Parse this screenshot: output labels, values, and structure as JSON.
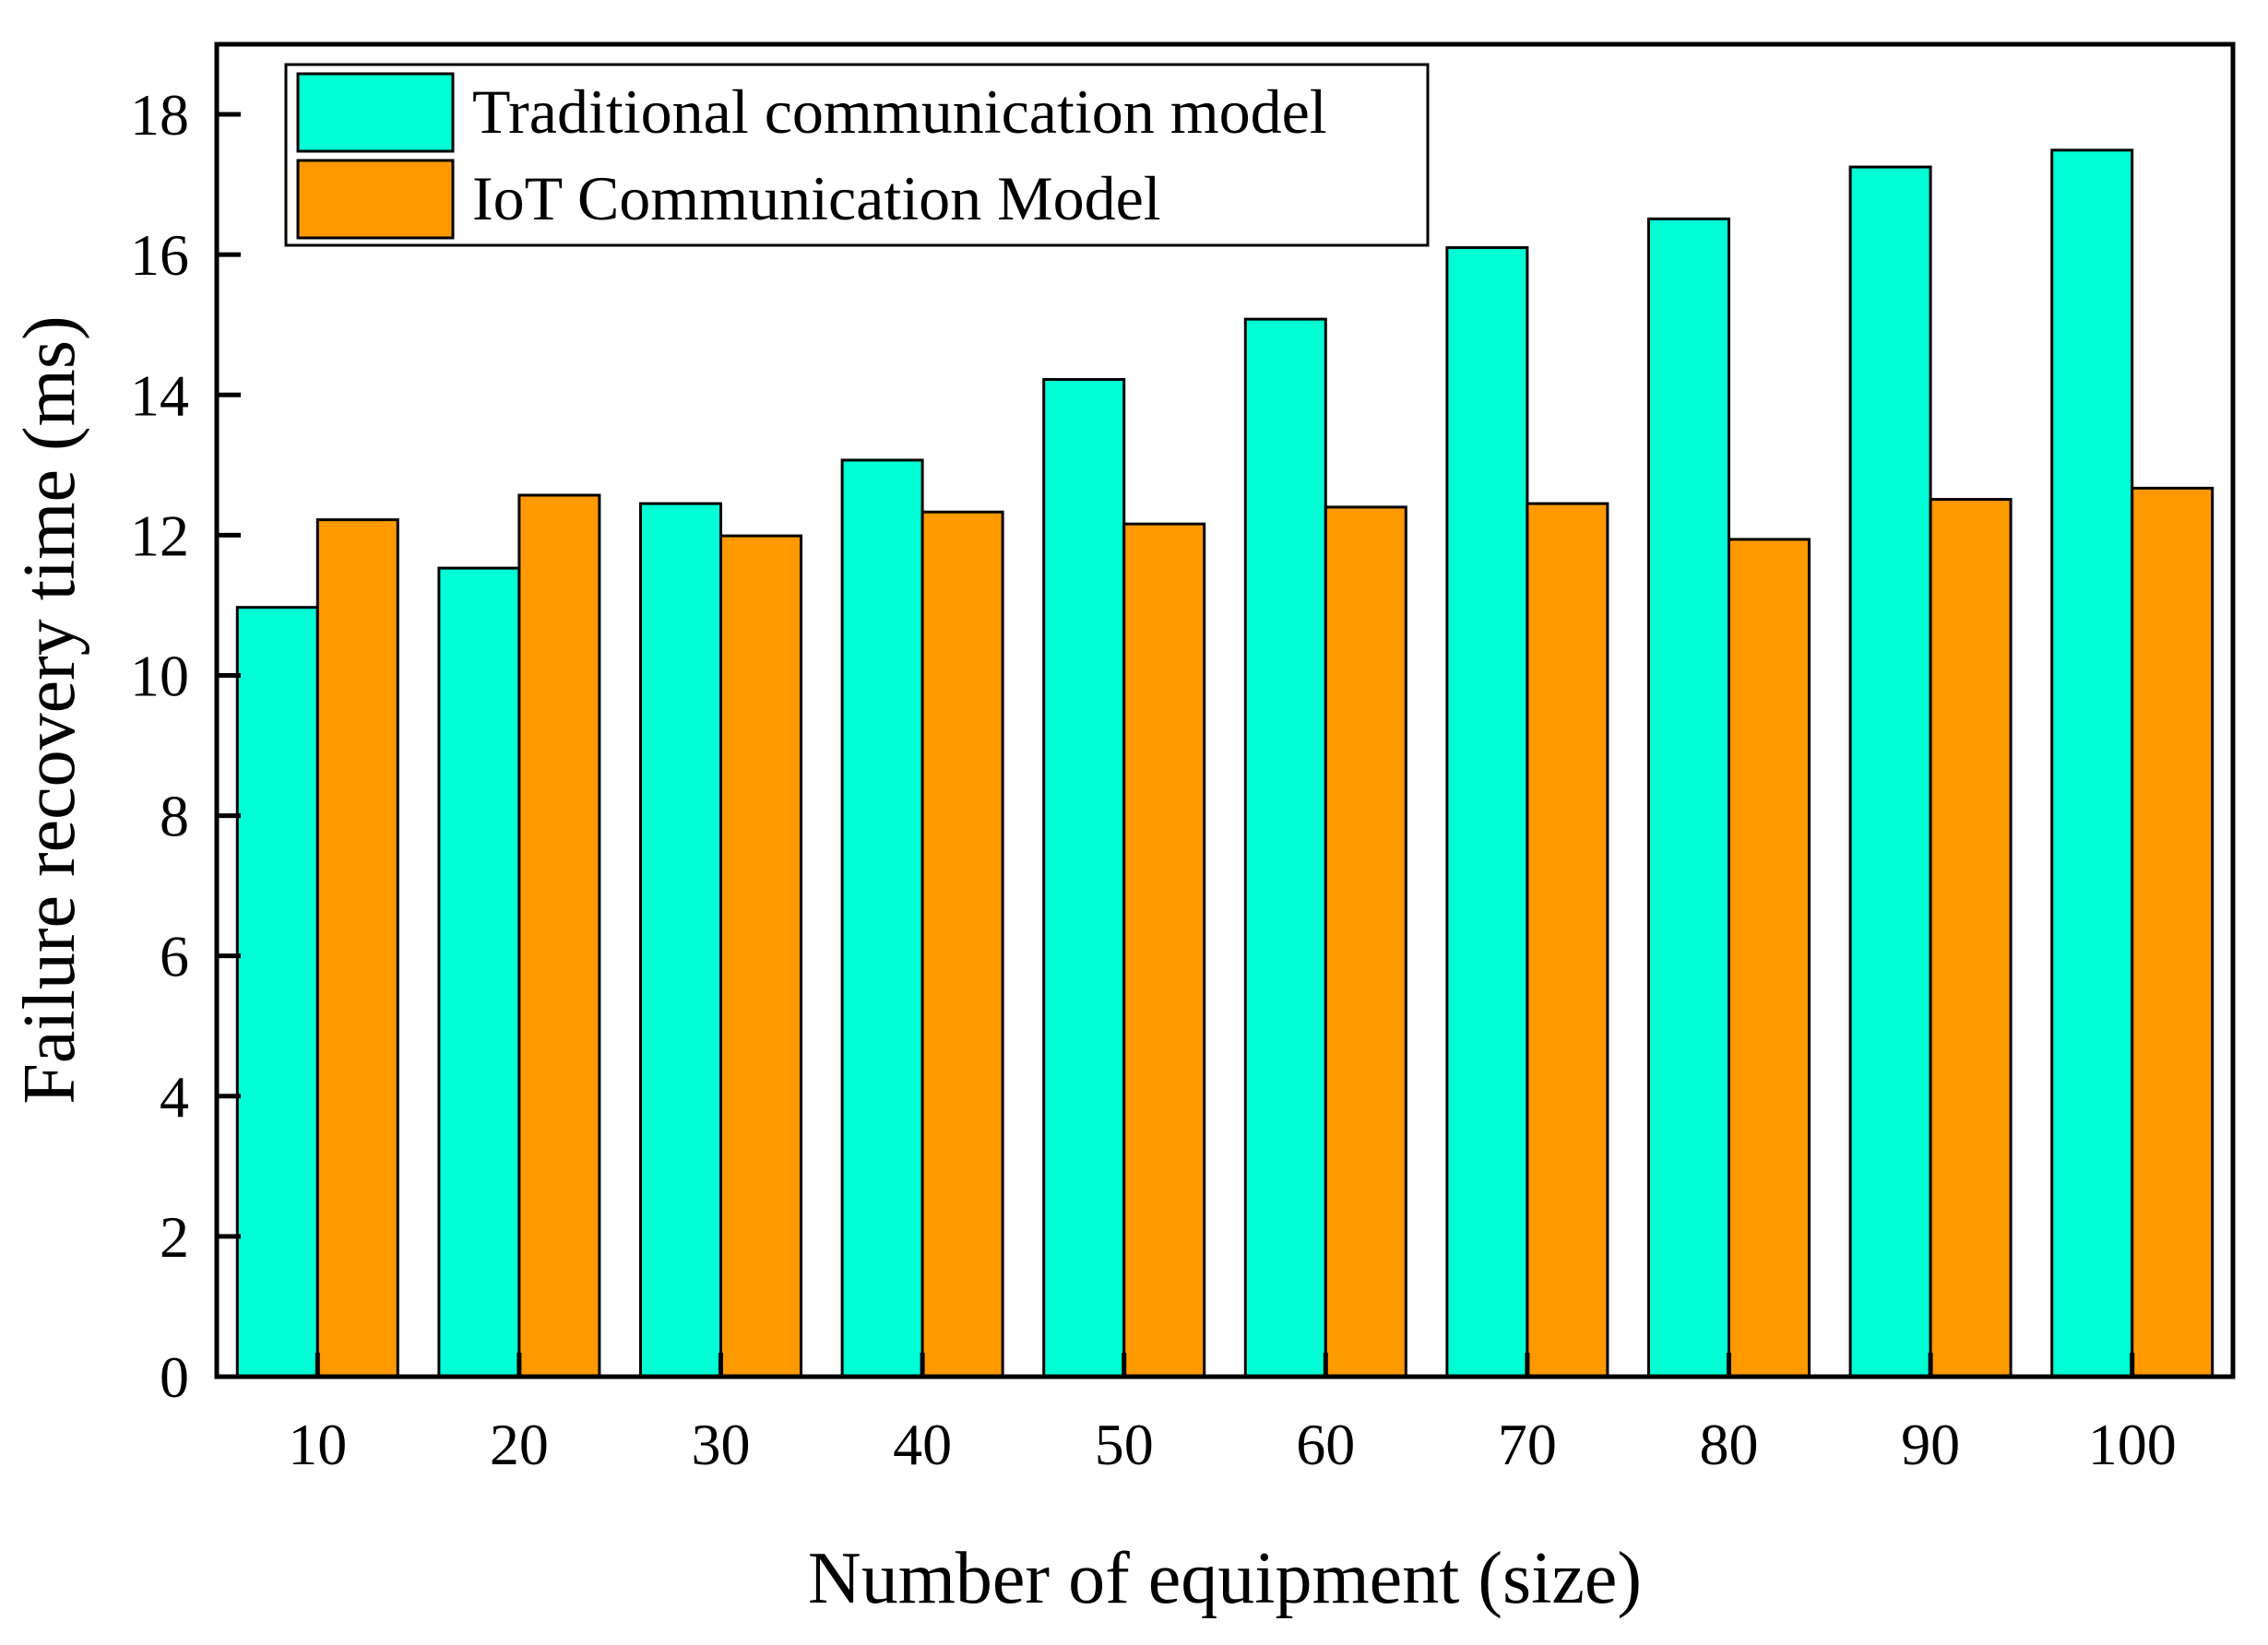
{
  "chart_data": {
    "type": "bar",
    "title": "",
    "xlabel": "Number of equipment (size)",
    "ylabel": "Failure recovery time (ms)",
    "ylim": [
      0,
      19
    ],
    "yticks": [
      0,
      2,
      4,
      6,
      8,
      10,
      12,
      14,
      16,
      18
    ],
    "categories": [
      "10",
      "20",
      "30",
      "40",
      "50",
      "60",
      "70",
      "80",
      "90",
      "100"
    ],
    "series": [
      {
        "name": "Traditional communication model",
        "color": "#00FFD5",
        "values": [
          10.97,
          11.53,
          12.45,
          13.07,
          14.22,
          15.08,
          16.1,
          16.51,
          17.25,
          17.49
        ]
      },
      {
        "name": "IoT Communication Model",
        "color": "#FF9900",
        "values": [
          12.22,
          12.57,
          11.99,
          12.33,
          12.16,
          12.4,
          12.45,
          11.94,
          12.51,
          12.67
        ]
      }
    ],
    "legend_position": "top-left",
    "grid": false
  }
}
